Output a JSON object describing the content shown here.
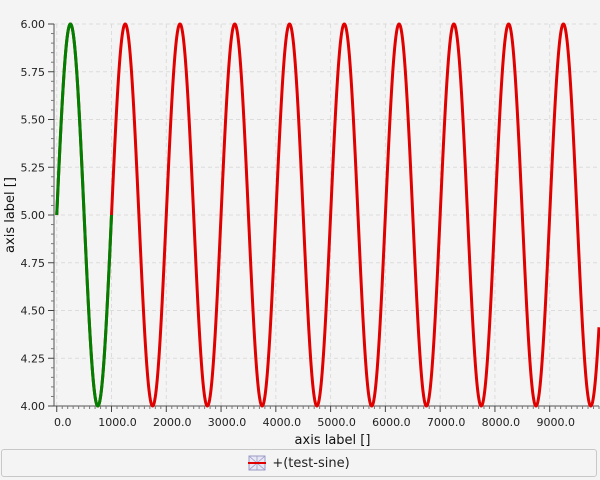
{
  "chart_data": {
    "type": "line",
    "xlabel": "axis label []",
    "ylabel": "axis label []",
    "xlim": [
      -50,
      9900
    ],
    "ylim": [
      4.0,
      6.0
    ],
    "xticks": [
      0,
      1000,
      2000,
      3000,
      4000,
      5000,
      6000,
      7000,
      8000,
      9000
    ],
    "xtick_labels": [
      "0.0",
      "1000.0",
      "2000.0",
      "3000.0",
      "4000.0",
      "5000.0",
      "6000.0",
      "7000.0",
      "8000.0",
      "9000.0"
    ],
    "yticks": [
      4.0,
      4.25,
      4.5,
      4.75,
      5.0,
      5.25,
      5.5,
      5.75,
      6.0
    ],
    "ytick_labels": [
      "4.00",
      "4.25",
      "4.50",
      "4.75",
      "5.00",
      "5.25",
      "5.50",
      "5.75",
      "6.00"
    ],
    "grid": true,
    "legend_position": "bottom",
    "function": {
      "form": "offset + amplitude * sin(2*pi*x/period)",
      "offset": 5.0,
      "amplitude": 1.0,
      "period": 1000,
      "x_start": 0,
      "x_end": 9900
    },
    "series": [
      {
        "name": "+(test-sine)",
        "color": "#e00000",
        "x_range": [
          0,
          9900
        ]
      },
      {
        "color": "#008000",
        "x_range": [
          0,
          1000
        ],
        "note": "highlighted segment"
      }
    ]
  }
}
